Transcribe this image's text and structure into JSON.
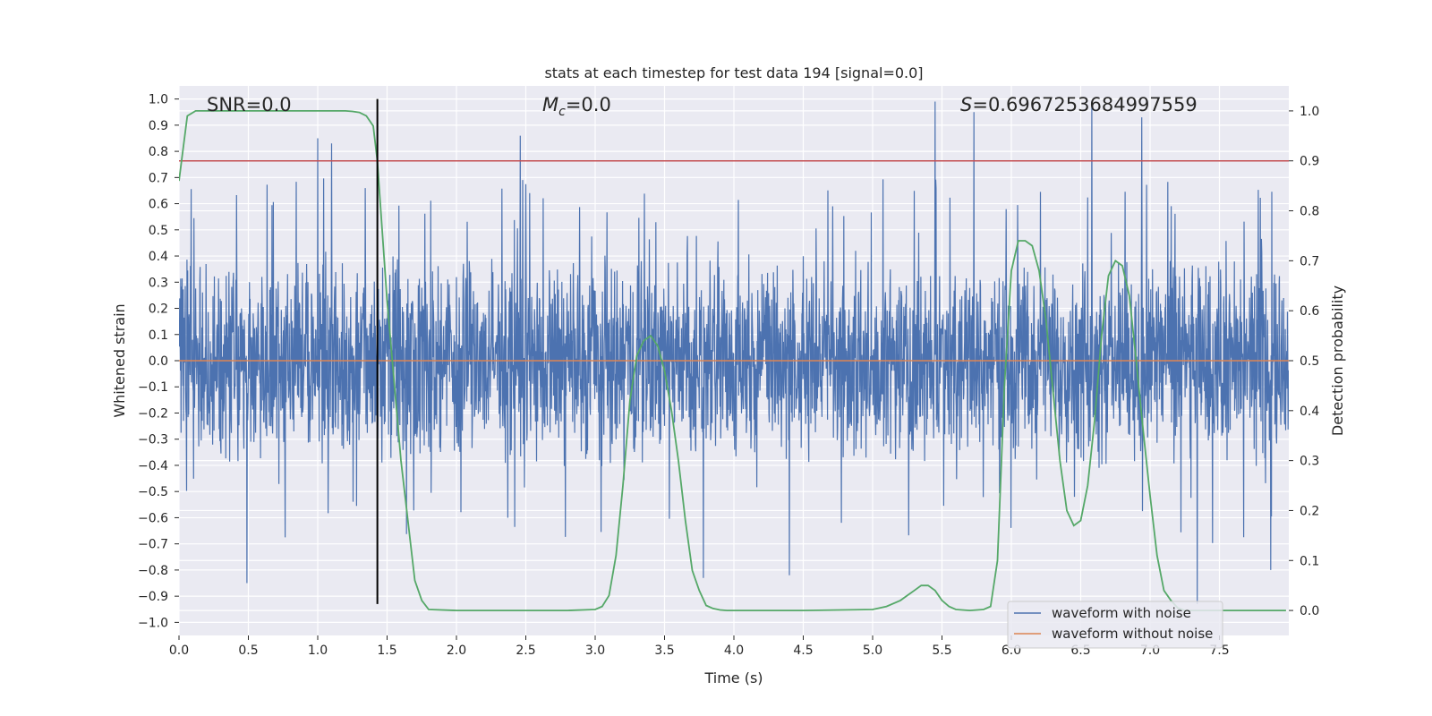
{
  "chart_data": {
    "type": "line",
    "title": "stats at each timestep for test data 194 [signal=0.0]",
    "xlabel": "Time (s)",
    "ylabel": "Whitened strain",
    "y2label": "Detection probability",
    "xlim": [
      0.0,
      8.0
    ],
    "ylim": [
      -1.05,
      1.05
    ],
    "y2lim": [
      -0.05,
      1.05
    ],
    "x_ticks": [
      0.0,
      0.5,
      1.0,
      1.5,
      2.0,
      2.5,
      3.0,
      3.5,
      4.0,
      4.5,
      5.0,
      5.5,
      6.0,
      6.5,
      7.0,
      7.5
    ],
    "x_tick_labels": [
      "0.0",
      "0.5",
      "1.0",
      "1.5",
      "2.0",
      "2.5",
      "3.0",
      "3.5",
      "4.0",
      "4.5",
      "5.0",
      "5.5",
      "6.0",
      "6.5",
      "7.0",
      "7.5"
    ],
    "y_ticks": [
      1.0,
      0.9,
      0.8,
      0.7,
      0.6,
      0.5,
      0.4,
      0.3,
      0.2,
      0.1,
      0.0,
      -0.1,
      -0.2,
      -0.3,
      -0.4,
      -0.5,
      -0.6,
      -0.7,
      -0.8,
      -0.9,
      -1.0
    ],
    "y_tick_labels": [
      "1.0",
      "0.9",
      "0.8",
      "0.7",
      "0.6",
      "0.5",
      "0.4",
      "0.3",
      "0.2",
      "0.1",
      "0.0",
      "−0.1",
      "−0.2",
      "−0.3",
      "−0.4",
      "−0.5",
      "−0.6",
      "−0.7",
      "−0.8",
      "−0.9",
      "−1.0"
    ],
    "y2_ticks": [
      1.0,
      0.9,
      0.8,
      0.7,
      0.6,
      0.5,
      0.4,
      0.3,
      0.2,
      0.1,
      0.0
    ],
    "y2_tick_labels": [
      "1.0",
      "0.9",
      "0.8",
      "0.7",
      "0.6",
      "0.5",
      "0.4",
      "0.3",
      "0.2",
      "0.1",
      "0.0"
    ],
    "annotations": {
      "snr": "SNR=0.0",
      "mc_symbol": "M",
      "mc_sub": "c",
      "mc_value": "=0.0",
      "s_symbol": "S",
      "s_value": "=0.6967253684997559"
    },
    "threshold_y2": 0.9,
    "detection_time": 1.43,
    "series": [
      {
        "name": "waveform with noise",
        "color": "#4c72b0",
        "description": "whitened noisy strain, roughly within -0.45..0.5 with spikes",
        "spike_peaks": [
          [
            1.0,
            0.85
          ],
          [
            1.1,
            0.83
          ],
          [
            2.46,
            0.86
          ],
          [
            5.45,
            0.99
          ],
          [
            5.73,
            0.95
          ],
          [
            6.58,
            0.99
          ],
          [
            6.94,
            0.93
          ]
        ],
        "spike_troughs": [
          [
            0.49,
            -0.85
          ],
          [
            3.78,
            -0.83
          ],
          [
            4.4,
            -0.82
          ],
          [
            7.34,
            -0.93
          ],
          [
            7.87,
            -0.8
          ]
        ]
      },
      {
        "name": "waveform without noise",
        "color": "#dd8452",
        "y": 0.0
      },
      {
        "name": "detection probability",
        "color": "#55a868",
        "axis": "y2",
        "x": [
          0.0,
          0.06,
          0.12,
          0.2,
          0.4,
          0.6,
          0.8,
          1.0,
          1.1,
          1.2,
          1.25,
          1.3,
          1.35,
          1.4,
          1.43,
          1.5,
          1.6,
          1.7,
          1.75,
          1.8,
          2.0,
          2.5,
          2.8,
          3.0,
          3.05,
          3.1,
          3.15,
          3.2,
          3.25,
          3.3,
          3.35,
          3.4,
          3.45,
          3.5,
          3.55,
          3.6,
          3.65,
          3.7,
          3.75,
          3.8,
          3.85,
          3.9,
          3.95,
          4.0,
          4.5,
          5.0,
          5.1,
          5.2,
          5.3,
          5.35,
          5.4,
          5.45,
          5.5,
          5.55,
          5.6,
          5.7,
          5.8,
          5.85,
          5.9,
          5.95,
          6.0,
          6.05,
          6.1,
          6.15,
          6.2,
          6.25,
          6.3,
          6.35,
          6.4,
          6.45,
          6.5,
          6.55,
          6.6,
          6.65,
          6.7,
          6.75,
          6.8,
          6.85,
          6.9,
          6.95,
          7.0,
          7.05,
          7.1,
          7.15,
          7.2,
          7.25,
          7.3,
          7.35,
          7.4,
          7.45,
          7.5,
          7.55,
          7.6,
          7.8,
          7.98
        ],
        "y": [
          0.86,
          0.99,
          1.0,
          1.0,
          1.0,
          1.0,
          1.0,
          1.0,
          1.0,
          1.0,
          0.999,
          0.997,
          0.99,
          0.97,
          0.9,
          0.62,
          0.3,
          0.06,
          0.02,
          0.002,
          0.0,
          0.0,
          0.0,
          0.002,
          0.008,
          0.03,
          0.11,
          0.25,
          0.42,
          0.51,
          0.54,
          0.55,
          0.53,
          0.48,
          0.4,
          0.3,
          0.18,
          0.08,
          0.04,
          0.01,
          0.004,
          0.001,
          0.0,
          0.0,
          0.0,
          0.002,
          0.008,
          0.02,
          0.04,
          0.05,
          0.05,
          0.04,
          0.02,
          0.008,
          0.002,
          0.0,
          0.002,
          0.008,
          0.1,
          0.45,
          0.68,
          0.74,
          0.74,
          0.73,
          0.68,
          0.58,
          0.44,
          0.3,
          0.2,
          0.17,
          0.18,
          0.25,
          0.38,
          0.55,
          0.67,
          0.7,
          0.69,
          0.63,
          0.5,
          0.36,
          0.23,
          0.11,
          0.04,
          0.02,
          0.005,
          0.0,
          0.0,
          0.0,
          0.0,
          0.0,
          0.0,
          0.0,
          0.0,
          0.0,
          0.0
        ]
      }
    ],
    "legend": {
      "position": "lower-right",
      "entries": [
        "waveform with noise",
        "waveform without noise"
      ]
    }
  },
  "colors": {
    "noise": "#4c72b0",
    "clean": "#dd8452",
    "probability": "#55a868",
    "threshold": "#c44e52",
    "marker": "#000000",
    "plot_bg": "#eaeaf2",
    "grid": "#ffffff"
  }
}
